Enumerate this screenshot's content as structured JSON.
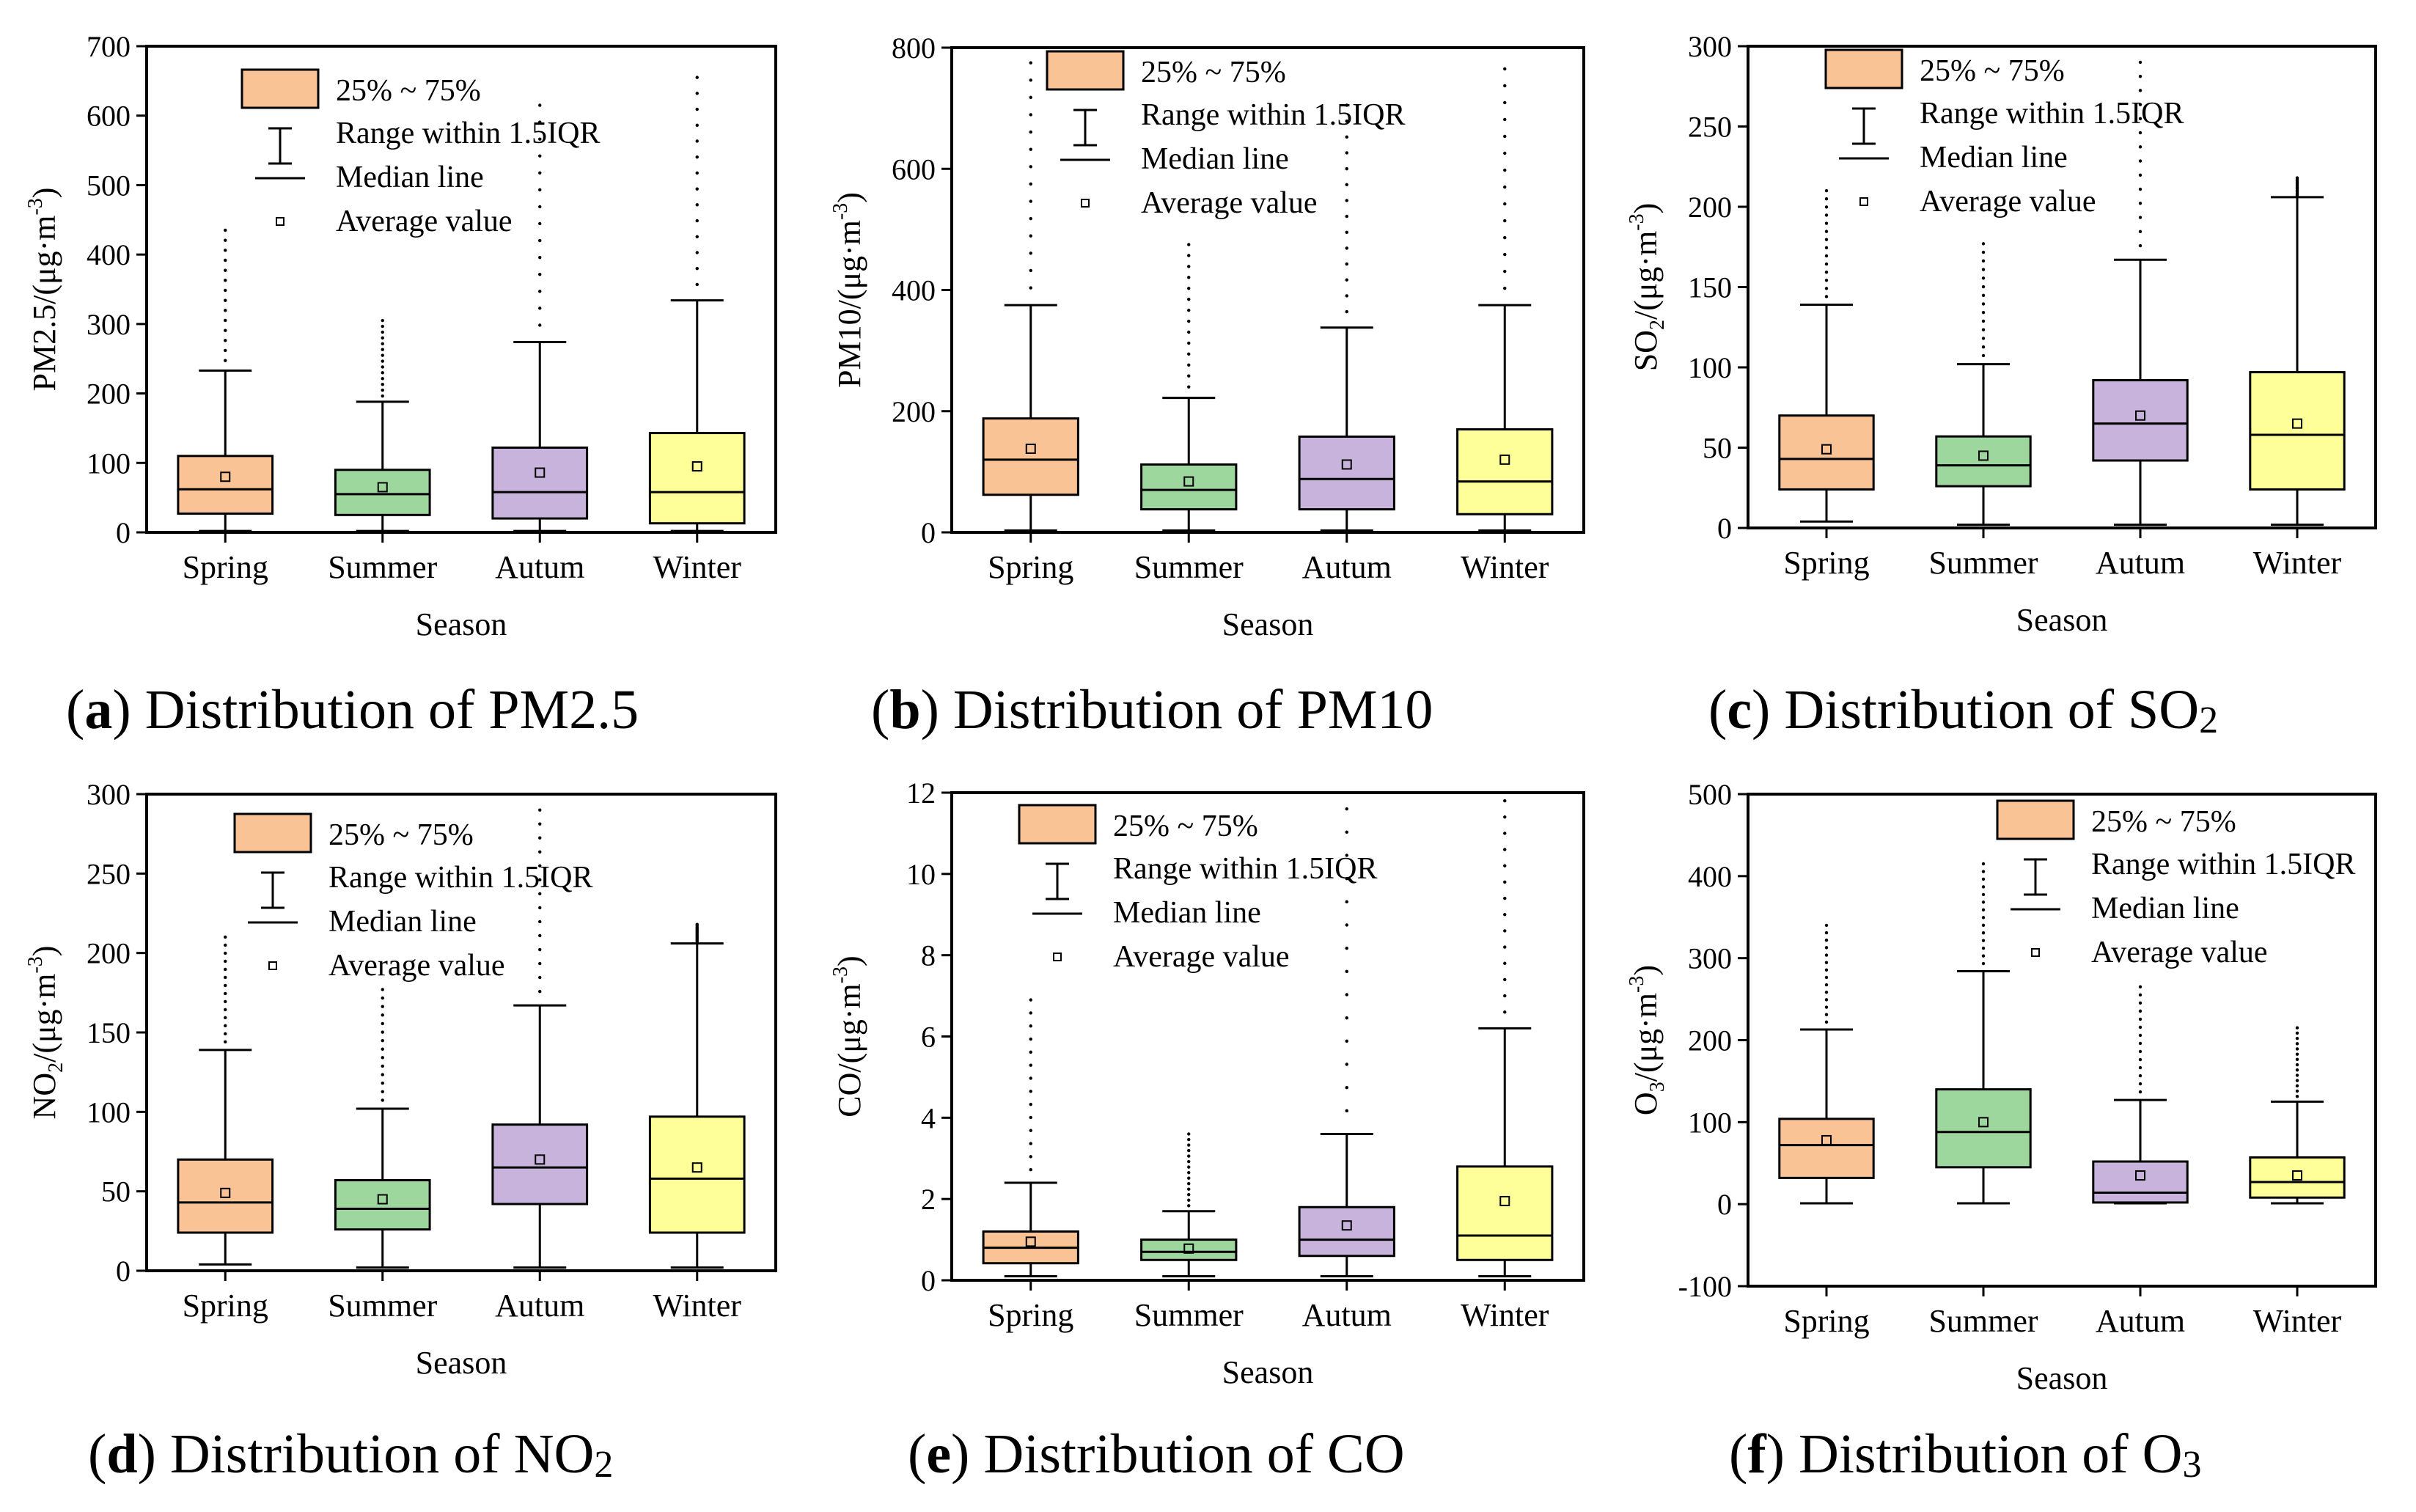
{
  "figure": {
    "legend": {
      "box_label": "25% ~ 75%",
      "whisker_label": "Range within 1.5IQR",
      "median_label": "Median line",
      "mean_label": "Average value"
    },
    "colors": {
      "Spring": "#F9C396",
      "Summer": "#9DD79D",
      "Autum": "#C7B3DC",
      "Winter": "#FFFF99",
      "stroke": "#000000"
    },
    "captions": [
      {
        "letter": "a",
        "text": " Distribution of ",
        "pollutant": "PM2.5",
        "sub": ""
      },
      {
        "letter": "b",
        "text": " Distribution of ",
        "pollutant": "PM10",
        "sub": ""
      },
      {
        "letter": "c",
        "text": " Distribution of ",
        "pollutant": "SO",
        "sub": "2"
      },
      {
        "letter": "d",
        "text": " Distribution of ",
        "pollutant": "NO",
        "sub": "2"
      },
      {
        "letter": "e",
        "text": " Distribution of ",
        "pollutant": "CO",
        "sub": ""
      },
      {
        "letter": "f",
        "text": " Distribution of ",
        "pollutant": "O",
        "sub": "3"
      }
    ]
  },
  "chart_data": [
    {
      "type": "box",
      "title": "(a) Distribution of PM2.5",
      "xlabel": "Season",
      "ylabel": {
        "main": "PM2.5/(μg·m",
        "sub": "",
        "sup": "-3",
        "end": ")"
      },
      "ylim": [
        0,
        700
      ],
      "yticks": [
        0,
        100,
        200,
        300,
        400,
        500,
        600,
        700
      ],
      "categories": [
        "Spring",
        "Summer",
        "Autum",
        "Winter"
      ],
      "boxes": [
        {
          "q1": 27,
          "median": 62,
          "q3": 110,
          "whisker_low": 2,
          "whisker_high": 233,
          "mean": 80,
          "outlier_max": 435
        },
        {
          "q1": 25,
          "median": 55,
          "q3": 90,
          "whisker_low": 2,
          "whisker_high": 188,
          "mean": 65,
          "outlier_max": 305
        },
        {
          "q1": 20,
          "median": 58,
          "q3": 122,
          "whisker_low": 2,
          "whisker_high": 274,
          "mean": 86,
          "outlier_max": 615
        },
        {
          "q1": 13,
          "median": 58,
          "q3": 143,
          "whisker_low": 2,
          "whisker_high": 334,
          "mean": 95,
          "outlier_max": 655
        }
      ],
      "legend_position": "top-left"
    },
    {
      "type": "box",
      "title": "(b) Distribution of PM10",
      "xlabel": "Season",
      "ylabel": {
        "main": "PM10/(μg·m",
        "sub": "",
        "sup": "-3",
        "end": ")"
      },
      "ylim": [
        0,
        800
      ],
      "yticks": [
        0,
        200,
        400,
        600,
        800
      ],
      "categories": [
        "Spring",
        "Summer",
        "Autum",
        "Winter"
      ],
      "boxes": [
        {
          "q1": 62,
          "median": 120,
          "q3": 188,
          "whisker_low": 3,
          "whisker_high": 375,
          "mean": 138,
          "outlier_max": 775
        },
        {
          "q1": 38,
          "median": 70,
          "q3": 112,
          "whisker_low": 3,
          "whisker_high": 222,
          "mean": 84,
          "outlier_max": 475
        },
        {
          "q1": 38,
          "median": 88,
          "q3": 158,
          "whisker_low": 3,
          "whisker_high": 338,
          "mean": 112,
          "outlier_max": 705
        },
        {
          "q1": 30,
          "median": 84,
          "q3": 170,
          "whisker_low": 3,
          "whisker_high": 375,
          "mean": 120,
          "outlier_max": 765
        }
      ],
      "legend_position": "top-left"
    },
    {
      "type": "box",
      "title": "(c) Distribution of SO2",
      "xlabel": "Season",
      "ylabel": {
        "main": "SO",
        "sub": "2",
        "sup": "-3",
        "mid": "/(μg·m",
        "end": ")"
      },
      "ylim": [
        0,
        300
      ],
      "yticks": [
        0,
        50,
        100,
        150,
        200,
        250,
        300
      ],
      "categories": [
        "Spring",
        "Summer",
        "Autum",
        "Winter"
      ],
      "boxes": [
        {
          "q1": 24,
          "median": 43,
          "q3": 70,
          "whisker_low": 4,
          "whisker_high": 139,
          "mean": 49,
          "outlier_max": 210
        },
        {
          "q1": 26,
          "median": 39,
          "q3": 57,
          "whisker_low": 2,
          "whisker_high": 102,
          "mean": 45,
          "outlier_max": 177
        },
        {
          "q1": 42,
          "median": 65,
          "q3": 92,
          "whisker_low": 2,
          "whisker_high": 167,
          "mean": 70,
          "outlier_max": 290
        },
        {
          "q1": 24,
          "median": 58,
          "q3": 97,
          "whisker_low": 2,
          "whisker_high": 206,
          "mean": 65,
          "outlier_max": 218
        }
      ],
      "legend_position": "top-center"
    },
    {
      "type": "box",
      "title": "(d) Distribution of NO2",
      "xlabel": "Season",
      "ylabel": {
        "main": "NO",
        "sub": "2",
        "sup": "-3",
        "mid": "/(μg·m",
        "end": ")"
      },
      "ylim": [
        0,
        300
      ],
      "yticks": [
        0,
        50,
        100,
        150,
        200,
        250,
        300
      ],
      "categories": [
        "Spring",
        "Summer",
        "Autum",
        "Winter"
      ],
      "boxes": [
        {
          "q1": 24,
          "median": 43,
          "q3": 70,
          "whisker_low": 4,
          "whisker_high": 139,
          "mean": 49,
          "outlier_max": 210
        },
        {
          "q1": 26,
          "median": 39,
          "q3": 57,
          "whisker_low": 2,
          "whisker_high": 102,
          "mean": 45,
          "outlier_max": 177
        },
        {
          "q1": 42,
          "median": 65,
          "q3": 92,
          "whisker_low": 2,
          "whisker_high": 167,
          "mean": 70,
          "outlier_max": 290
        },
        {
          "q1": 24,
          "median": 58,
          "q3": 97,
          "whisker_low": 2,
          "whisker_high": 206,
          "mean": 65,
          "outlier_max": 218
        }
      ],
      "legend_position": "top-left"
    },
    {
      "type": "box",
      "title": "(e) Distribution of CO",
      "xlabel": "Season",
      "ylabel": {
        "main": "CO/(μg·m",
        "sub": "",
        "sup": "-3",
        "end": ")"
      },
      "ylim": [
        0,
        12
      ],
      "yticks": [
        0,
        2,
        4,
        6,
        8,
        10,
        12
      ],
      "categories": [
        "Spring",
        "Summer",
        "Autum",
        "Winter"
      ],
      "boxes": [
        {
          "q1": 0.42,
          "median": 0.8,
          "q3": 1.2,
          "whisker_low": 0.1,
          "whisker_high": 2.4,
          "mean": 0.95,
          "outlier_max": 6.9
        },
        {
          "q1": 0.5,
          "median": 0.7,
          "q3": 1.0,
          "whisker_low": 0.1,
          "whisker_high": 1.7,
          "mean": 0.78,
          "outlier_max": 3.6
        },
        {
          "q1": 0.6,
          "median": 1.0,
          "q3": 1.8,
          "whisker_low": 0.1,
          "whisker_high": 3.6,
          "mean": 1.35,
          "outlier_max": 11.6
        },
        {
          "q1": 0.5,
          "median": 1.1,
          "q3": 2.8,
          "whisker_low": 0.1,
          "whisker_high": 6.2,
          "mean": 1.95,
          "outlier_max": 11.8
        }
      ],
      "legend_position": "top-left"
    },
    {
      "type": "box",
      "title": "(f) Distribution of O3",
      "xlabel": "Season",
      "ylabel": {
        "main": "O",
        "sub": "3",
        "sup": "-3",
        "mid": "/(μg·m",
        "end": ")"
      },
      "ylim": [
        -100,
        500
      ],
      "yticks": [
        -100,
        0,
        100,
        200,
        300,
        400,
        500
      ],
      "categories": [
        "Spring",
        "Summer",
        "Autum",
        "Winter"
      ],
      "boxes": [
        {
          "q1": 32,
          "median": 72,
          "q3": 104,
          "whisker_low": 1,
          "whisker_high": 213,
          "mean": 78,
          "outlier_max": 340
        },
        {
          "q1": 45,
          "median": 88,
          "q3": 140,
          "whisker_low": 1,
          "whisker_high": 284,
          "mean": 100,
          "outlier_max": 415
        },
        {
          "q1": 2,
          "median": 14,
          "q3": 52,
          "whisker_low": 1,
          "whisker_high": 127,
          "mean": 35,
          "outlier_max": 265
        },
        {
          "q1": 8,
          "median": 27,
          "q3": 57,
          "whisker_low": 1,
          "whisker_high": 125,
          "mean": 35,
          "outlier_max": 215
        }
      ],
      "legend_position": "top-right"
    }
  ]
}
